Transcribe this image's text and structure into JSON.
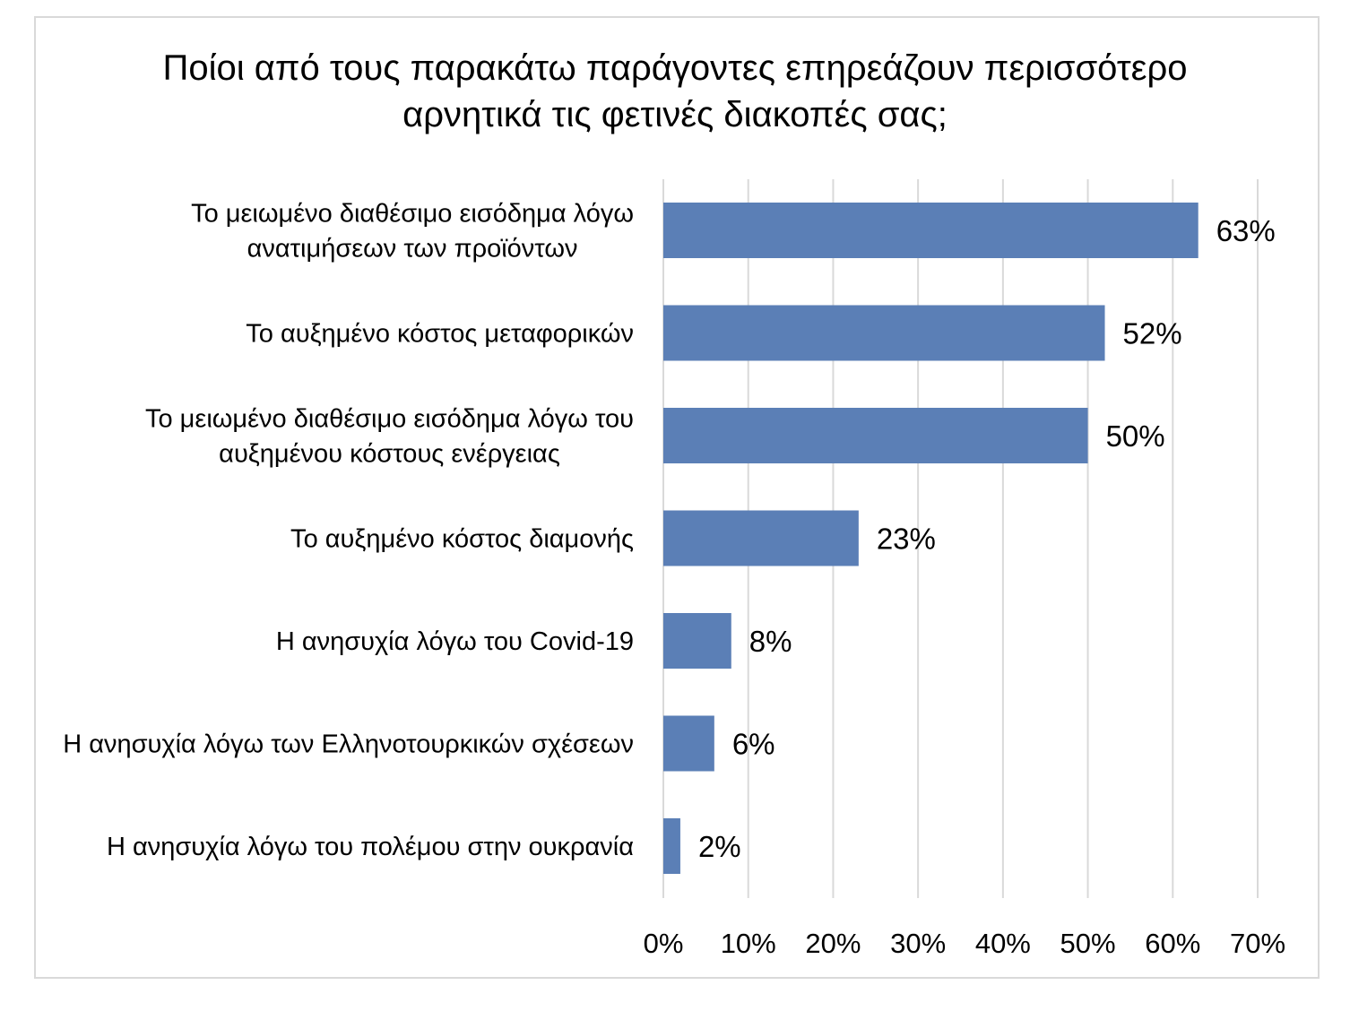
{
  "chart_data": {
    "type": "bar",
    "orientation": "horizontal",
    "title_lines": [
      "Ποίοι από τους παρακάτω παράγοντες επηρεάζουν περισσότερο",
      "αρνητικά τις φετινές διακοπές σας;"
    ],
    "categories": [
      [
        "Το μειωμένο διαθέσιμο εισόδημα λόγω",
        "ανατιμήσεων των προϊόντων"
      ],
      [
        "Το αυξημένο κόστος μεταφορικών"
      ],
      [
        "Το μειωμένο διαθέσιμο εισόδημα λόγω του",
        "αυξημένου κόστους ενέργειας"
      ],
      [
        "Το αυξημένο κόστος διαμονής"
      ],
      [
        "Η ανησυχία λόγω του Covid-19"
      ],
      [
        "Η ανησυχία λόγω των Ελληνοτουρκικών σχέσεων"
      ],
      [
        "Η ανησυχία λόγω του πολέμου στην ουκρανία"
      ]
    ],
    "values": [
      63,
      52,
      50,
      23,
      8,
      6,
      2
    ],
    "value_labels": [
      "63%",
      "52%",
      "50%",
      "23%",
      "8%",
      "6%",
      "2%"
    ],
    "xlim": [
      0,
      70
    ],
    "xticks": [
      0,
      10,
      20,
      30,
      40,
      50,
      60,
      70
    ],
    "xtick_labels": [
      "0%",
      "10%",
      "20%",
      "30%",
      "40%",
      "50%",
      "60%",
      "70%"
    ],
    "grid": "vertical",
    "legend": "none",
    "bar_color": "#5b7fb6",
    "grid_color": "#d9d9d9"
  }
}
